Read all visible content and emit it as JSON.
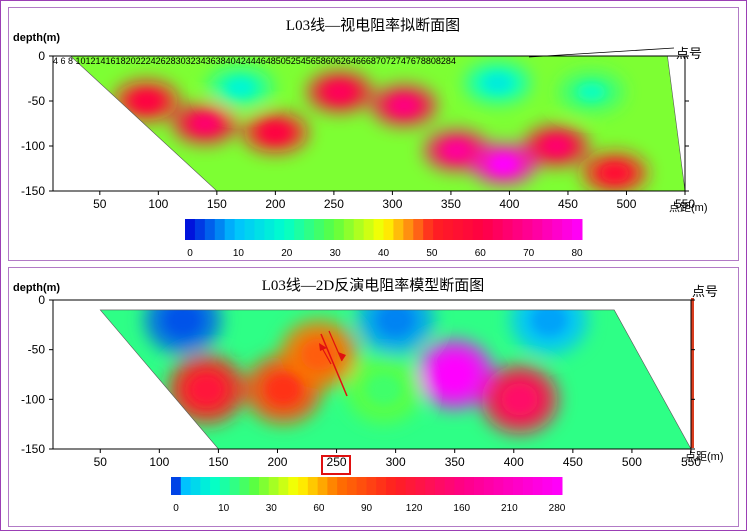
{
  "panels": [
    {
      "title": "L03线—视电阻率拟断面图",
      "depth_label": "depth(m)",
      "station_label": "点号",
      "distance_label": "点距(m)",
      "station_numbers": "4 6 8 1012141618202224262830323436384042444648505254565860626466687072747678808284",
      "colorbar_ticks": [
        "0",
        "10",
        "20",
        "30",
        "40",
        "50",
        "60",
        "70",
        "80"
      ]
    },
    {
      "title": "L03线—2D反演电阻率模型断面图",
      "depth_label": "depth(m)",
      "station_label": "点号",
      "distance_label": "点距(m)",
      "highlight_label": "250",
      "colorbar_ticks": [
        "0",
        "10",
        "30",
        "60",
        "90",
        "120",
        "160",
        "210",
        "280"
      ]
    }
  ],
  "chart_data": [
    {
      "type": "heatmap",
      "title": "L03线—视电阻率拟断面图",
      "xlabel": "点距(m)",
      "ylabel": "depth(m)",
      "xlim": [
        10,
        550
      ],
      "ylim": [
        -150,
        0
      ],
      "x_ticks": [
        50,
        100,
        150,
        200,
        250,
        300,
        350,
        400,
        450,
        500,
        550
      ],
      "y_ticks": [
        0,
        -50,
        -100,
        -150
      ],
      "section_polygon": [
        [
          25,
          0
        ],
        [
          535,
          0
        ],
        [
          550,
          -150
        ],
        [
          150,
          -150
        ]
      ],
      "colorbar": {
        "values": [
          0,
          10,
          20,
          30,
          40,
          50,
          60,
          70,
          80
        ],
        "colors": [
          "#0000d8",
          "#00c0ff",
          "#00ffcc",
          "#5cff40",
          "#ffff00",
          "#ff2020",
          "#ff0044",
          "#ff0099",
          "#ff00ff"
        ]
      },
      "anomalies": [
        {
          "x": 90,
          "y": -50,
          "value": 55
        },
        {
          "x": 140,
          "y": -75,
          "value": 60
        },
        {
          "x": 200,
          "y": -85,
          "value": 55
        },
        {
          "x": 255,
          "y": -40,
          "value": 58
        },
        {
          "x": 310,
          "y": -55,
          "value": 62
        },
        {
          "x": 355,
          "y": -105,
          "value": 65
        },
        {
          "x": 395,
          "y": -120,
          "value": 75
        },
        {
          "x": 440,
          "y": -100,
          "value": 60
        },
        {
          "x": 490,
          "y": -130,
          "value": 52
        },
        {
          "x": 170,
          "y": -35,
          "value": 22
        },
        {
          "x": 390,
          "y": -30,
          "value": 20
        },
        {
          "x": 470,
          "y": -40,
          "value": 25
        }
      ]
    },
    {
      "type": "heatmap",
      "title": "L03线—2D反演电阻率模型断面图",
      "xlabel": "点距(m)",
      "ylabel": "depth(m)",
      "xlim": [
        10,
        550
      ],
      "ylim": [
        -150,
        0
      ],
      "x_ticks": [
        50,
        100,
        150,
        200,
        250,
        300,
        350,
        400,
        450,
        500,
        550
      ],
      "y_ticks": [
        0,
        -50,
        -100,
        -150
      ],
      "section_polygon": [
        [
          50,
          -10
        ],
        [
          485,
          -10
        ],
        [
          550,
          -150
        ],
        [
          150,
          -150
        ]
      ],
      "colorbar": {
        "values": [
          0,
          10,
          30,
          60,
          90,
          120,
          160,
          210,
          280
        ],
        "colors": [
          "#0000d8",
          "#00c0ff",
          "#00ffcc",
          "#5cff40",
          "#ffff00",
          "#ff7000",
          "#ff2020",
          "#ff0088",
          "#ff00ff"
        ]
      },
      "anomalies": [
        {
          "x": 140,
          "y": -90,
          "value": 160
        },
        {
          "x": 205,
          "y": -90,
          "value": 140
        },
        {
          "x": 235,
          "y": -55,
          "value": 120
        },
        {
          "x": 350,
          "y": -75,
          "value": 280
        },
        {
          "x": 405,
          "y": -100,
          "value": 180
        },
        {
          "x": 290,
          "y": -90,
          "value": 60
        },
        {
          "x": 300,
          "y": -20,
          "value": 8
        },
        {
          "x": 120,
          "y": -20,
          "value": 5
        },
        {
          "x": 430,
          "y": -20,
          "value": 10
        }
      ],
      "annotation": {
        "label": "250",
        "x": 250
      }
    }
  ]
}
